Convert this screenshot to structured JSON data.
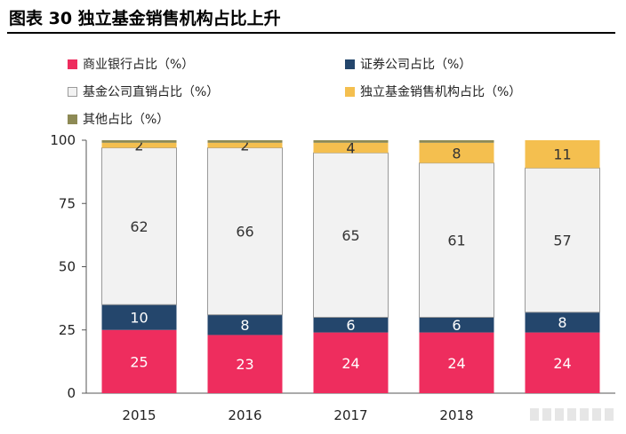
{
  "title": "图表 30  独立基金销售机构占比上升",
  "colors": {
    "bank": "#ee2d5e",
    "securities": "#24466c",
    "direct": "#f2f2f2",
    "independent": "#f4bf4f",
    "other": "#8d8a55"
  },
  "chart_data": {
    "type": "bar",
    "stacked": true,
    "categories": [
      "2015",
      "2016",
      "2017",
      "2018",
      ""
    ],
    "series": [
      {
        "name": "商业银行占比（%）",
        "values": [
          25,
          23,
          24,
          24,
          24
        ],
        "labels": [
          "25",
          "23",
          "24",
          "24",
          "24"
        ]
      },
      {
        "name": "证券公司占比（%）",
        "values": [
          10,
          8,
          6,
          6,
          8
        ],
        "labels": [
          "10",
          "8",
          "6",
          "6",
          "8"
        ]
      },
      {
        "name": "基金公司直销占比（%）",
        "values": [
          62,
          66,
          65,
          61,
          57
        ],
        "labels": [
          "62",
          "66",
          "65",
          "61",
          "57"
        ]
      },
      {
        "name": "独立基金销售机构占比（%）",
        "values": [
          2,
          2,
          4,
          8,
          11
        ],
        "labels": [
          "2",
          "2",
          "4",
          "8",
          "11"
        ]
      },
      {
        "name": "其他占比（%）",
        "values": [
          1,
          1,
          1,
          1,
          0
        ],
        "labels": [
          "",
          "",
          "",
          "",
          ""
        ]
      }
    ],
    "yticks": [
      "0",
      "25",
      "50",
      "75",
      "100"
    ],
    "ylim": [
      0,
      100
    ],
    "legend_position": "top-left"
  }
}
